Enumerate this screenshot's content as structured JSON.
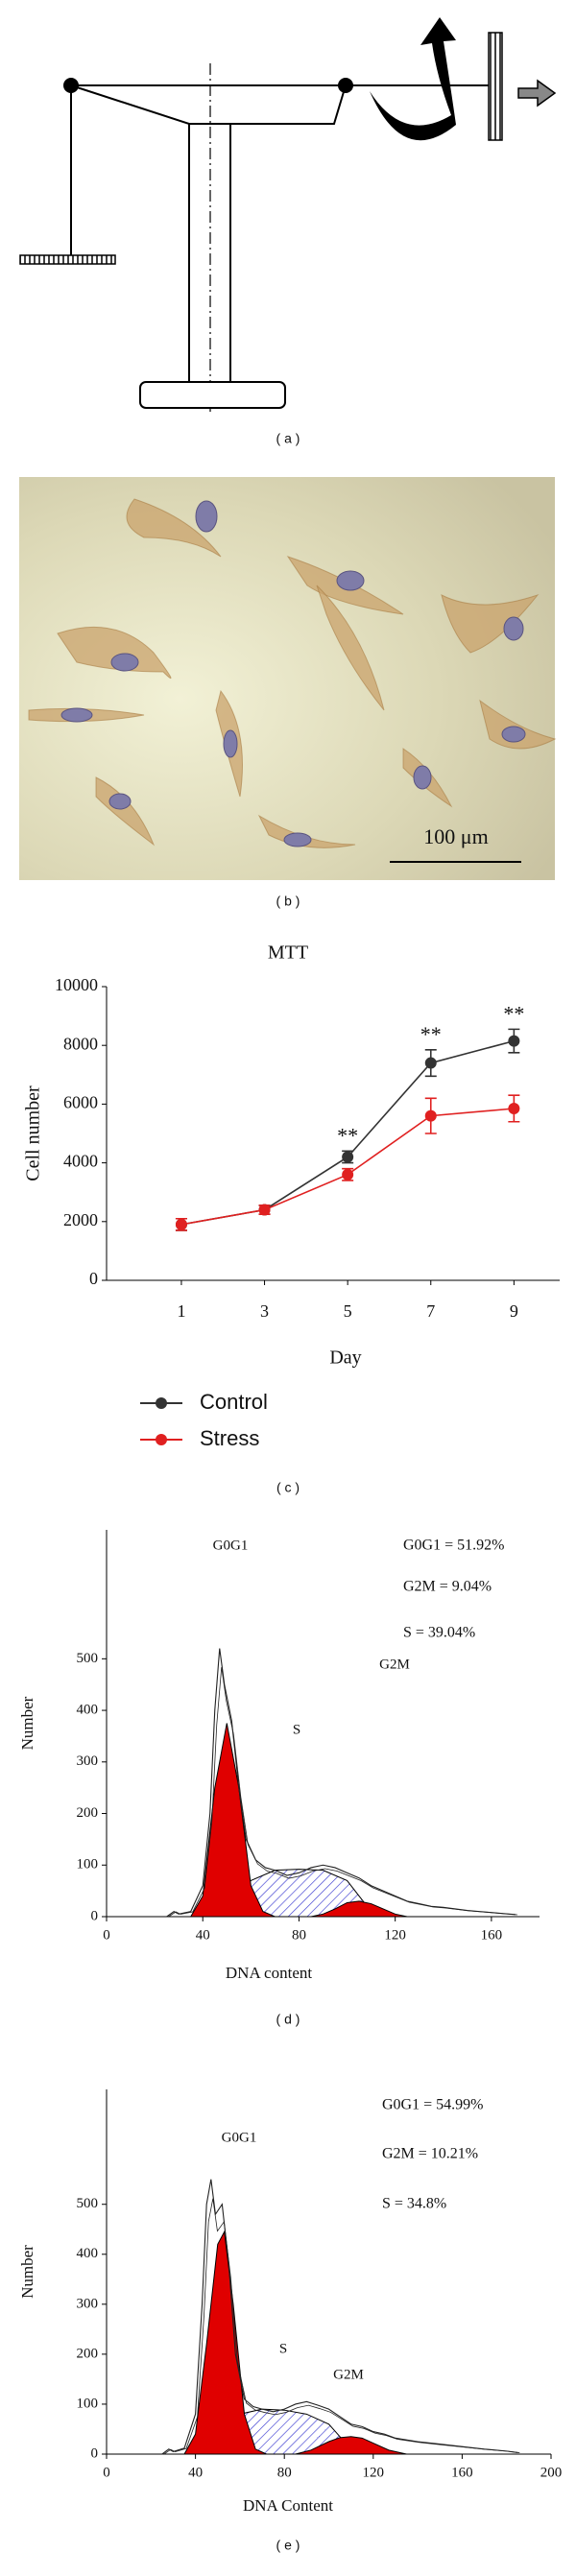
{
  "panel_a": {
    "label": "( a )"
  },
  "panel_b": {
    "label": "( b )",
    "scale_bar": "100 μm"
  },
  "chart_data": [
    {
      "type": "line",
      "title": "MTT",
      "panel_label": "( c )",
      "x_label": "Day",
      "y_label": "Cell number",
      "xlim": [
        -0.8,
        10.1
      ],
      "xticks": [
        1,
        3,
        5,
        7,
        9
      ],
      "ylim": [
        0,
        10000
      ],
      "yticks": [
        0,
        2000,
        4000,
        6000,
        8000,
        10000
      ],
      "x": [
        1,
        3,
        5,
        7,
        9
      ],
      "series": [
        {
          "name": "Control",
          "color": "#333333",
          "values": [
            1900,
            2400,
            4200,
            7400,
            8150
          ],
          "errors": [
            200,
            150,
            200,
            450,
            400
          ]
        },
        {
          "name": "Stress",
          "color": "#e02020",
          "values": [
            1900,
            2400,
            3600,
            5600,
            5850
          ],
          "errors": [
            200,
            150,
            200,
            600,
            450
          ]
        }
      ],
      "annotations": [
        {
          "x": 5,
          "text": "**"
        },
        {
          "x": 7,
          "text": "**"
        },
        {
          "x": 9,
          "text": "**"
        }
      ]
    },
    {
      "type": "area",
      "panel_label": "( d )",
      "x_label": "DNA content",
      "y_label": "Number",
      "xlim": [
        0,
        180
      ],
      "xticks": [
        0,
        40,
        80,
        120,
        160
      ],
      "ylim": [
        0,
        750
      ],
      "yticks": [
        0,
        100,
        200,
        300,
        400,
        500
      ],
      "stats": [
        "G0G1 = 51.92%",
        "G2M = 9.04%",
        "S = 39.04%"
      ],
      "series": [
        {
          "name": "S",
          "color": "#3a3ad0",
          "style": "hatch",
          "x": [
            45,
            55,
            60,
            70,
            80,
            90,
            100,
            105,
            110,
            115
          ],
          "values": [
            0,
            40,
            70,
            90,
            92,
            90,
            70,
            40,
            10,
            0
          ]
        },
        {
          "name": "G2M",
          "color": "#e00000",
          "style": "fill",
          "x": [
            85,
            90,
            95,
            100,
            105,
            110,
            115,
            120,
            125
          ],
          "values": [
            0,
            5,
            15,
            27,
            30,
            25,
            15,
            5,
            0
          ]
        },
        {
          "name": "G0G1",
          "color": "#e00000",
          "style": "fill",
          "x": [
            35,
            40,
            45,
            50,
            55,
            60,
            65,
            70
          ],
          "values": [
            0,
            40,
            250,
            375,
            250,
            60,
            10,
            0
          ]
        },
        {
          "color": "#222222",
          "style": "line",
          "x": [
            25,
            28,
            30,
            35,
            40,
            43,
            45,
            47,
            49,
            52,
            55,
            58,
            62,
            66,
            70,
            75,
            80,
            85,
            90,
            95,
            100,
            105,
            110,
            115,
            120,
            125,
            130,
            135,
            140,
            145,
            150,
            155,
            160,
            165,
            170
          ],
          "values": [
            0,
            10,
            5,
            10,
            60,
            200,
            400,
            520,
            450,
            380,
            250,
            150,
            110,
            95,
            90,
            80,
            85,
            95,
            100,
            95,
            85,
            75,
            60,
            50,
            40,
            30,
            25,
            20,
            18,
            15,
            12,
            10,
            8,
            6,
            4
          ]
        }
      ]
    },
    {
      "type": "area",
      "panel_label": "( e )",
      "x_label": "DNA Content",
      "y_label": "Number",
      "xlim": [
        0,
        200
      ],
      "xticks": [
        0,
        40,
        80,
        120,
        160,
        200
      ],
      "ylim": [
        0,
        730
      ],
      "yticks": [
        0,
        100,
        200,
        300,
        400,
        500
      ],
      "stats": [
        "G0G1 = 54.99%",
        "G2M = 10.21%",
        "S = 34.8%"
      ],
      "series": [
        {
          "name": "S",
          "color": "#3a3ad0",
          "style": "hatch",
          "x": [
            45,
            55,
            60,
            70,
            80,
            90,
            100,
            105,
            110,
            115
          ],
          "values": [
            0,
            45,
            80,
            90,
            88,
            80,
            60,
            35,
            10,
            0
          ]
        },
        {
          "name": "G2M",
          "color": "#e00000",
          "style": "fill",
          "x": [
            85,
            92,
            100,
            105,
            110,
            115,
            120,
            127,
            135
          ],
          "values": [
            0,
            8,
            25,
            33,
            35,
            32,
            22,
            8,
            0
          ]
        },
        {
          "name": "G0G1",
          "color": "#e00000",
          "style": "fill",
          "x": [
            35,
            40,
            45,
            50,
            53,
            57,
            62,
            67,
            72
          ],
          "values": [
            0,
            40,
            220,
            420,
            445,
            300,
            80,
            10,
            0
          ]
        },
        {
          "color": "#222222",
          "style": "line",
          "x": [
            25,
            28,
            30,
            35,
            40,
            43,
            45,
            47,
            49,
            52,
            55,
            58,
            62,
            66,
            70,
            75,
            80,
            85,
            90,
            95,
            100,
            105,
            110,
            115,
            120,
            125,
            130,
            140,
            150,
            160,
            170,
            180,
            185
          ],
          "values": [
            0,
            10,
            5,
            12,
            80,
            300,
            500,
            550,
            480,
            500,
            380,
            200,
            110,
            95,
            90,
            85,
            90,
            100,
            105,
            98,
            90,
            75,
            60,
            55,
            45,
            40,
            32,
            25,
            20,
            15,
            10,
            6,
            3
          ]
        }
      ]
    }
  ]
}
